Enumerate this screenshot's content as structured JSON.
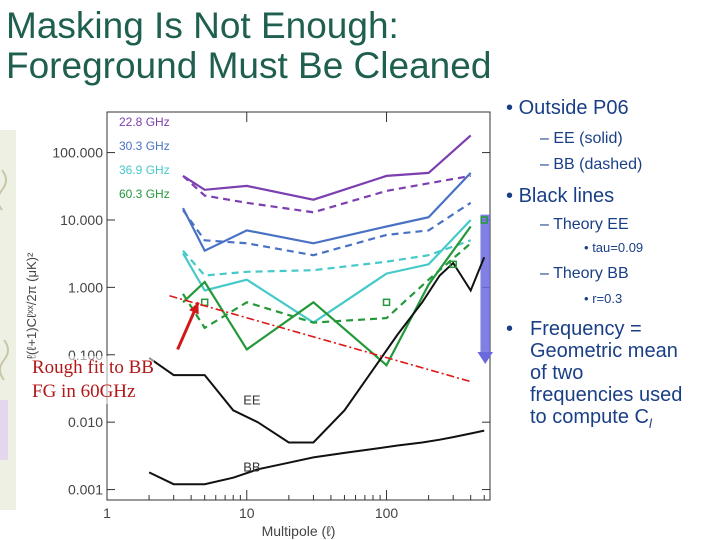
{
  "slide": {
    "title_line1": "Masking Is Not Enough:",
    "title_line2": "Foreground Must Be Cleaned",
    "title_color": "#1f5f4f",
    "text_color": "#1a3f86"
  },
  "bullets": {
    "b1": "Outside P06",
    "b1_sub1": "EE (solid)",
    "b1_sub2": "BB (dashed)",
    "b2": "Black lines",
    "b2_sub1": "Theory EE",
    "b2_sub1_sub": "tau=0.09",
    "b2_sub2": "Theory BB",
    "b2_sub2_sub": "r=0.3",
    "b3_line1": "Frequency =",
    "b3_line2": "Geometric mean",
    "b3_line3": "of two",
    "b3_line4": "frequencies used",
    "b3_line5": "to compute C",
    "b3_sub": "l",
    "bullet_char": "•",
    "dash_char": "–"
  },
  "annotation": {
    "line1": "Rough fit to BB",
    "line2": "FG in 60GHz",
    "color": "#b21818"
  },
  "chart_data": {
    "type": "line",
    "xscale": "log",
    "yscale": "log",
    "xlim": [
      1,
      550
    ],
    "ylim": [
      0.0007,
      400
    ],
    "xlabel": "Multipole (ℓ)",
    "ylabel": "ℓ(ℓ+1)Cℓˣˣ/2π (μK)²",
    "xticks": [
      {
        "label": "1",
        "value": 1
      },
      {
        "label": "10",
        "value": 10
      },
      {
        "label": "100",
        "value": 100
      }
    ],
    "yticks": [
      {
        "label": "100.000",
        "value": 100
      },
      {
        "label": "10.000",
        "value": 10
      },
      {
        "label": "1.000",
        "value": 1
      },
      {
        "label": "0.100",
        "value": 0.1
      },
      {
        "label": "0.010",
        "value": 0.01
      },
      {
        "label": "0.001",
        "value": 0.001
      }
    ],
    "legend": [
      {
        "name": "22.8 GHz",
        "color": "#7b3fb0"
      },
      {
        "name": "30.3 GHz",
        "color": "#4a72c4"
      },
      {
        "name": "36.9 GHz",
        "color": "#45c9c9"
      },
      {
        "name": "60.3 GHz",
        "color": "#23993a"
      }
    ],
    "series": [
      {
        "freq": "22.8 GHz",
        "kind": "EE",
        "dash": false,
        "color": "#7b3fb0",
        "x": [
          3.5,
          5,
          10,
          30,
          100,
          200,
          400
        ],
        "y": [
          45,
          28,
          32,
          20,
          45,
          50,
          180
        ]
      },
      {
        "freq": "22.8 GHz",
        "kind": "BB",
        "dash": true,
        "color": "#7b3fb0",
        "x": [
          3.5,
          5,
          10,
          30,
          100,
          200,
          400
        ],
        "y": [
          45,
          23,
          18,
          13,
          27,
          35,
          45
        ]
      },
      {
        "freq": "30.3 GHz",
        "kind": "EE",
        "dash": false,
        "color": "#4a72c4",
        "x": [
          3.5,
          5,
          10,
          30,
          100,
          200,
          400
        ],
        "y": [
          15,
          3.5,
          7,
          4.5,
          8,
          11,
          50
        ]
      },
      {
        "freq": "30.3 GHz",
        "kind": "BB",
        "dash": true,
        "color": "#4a72c4",
        "x": [
          3.5,
          5,
          10,
          30,
          100,
          200,
          400
        ],
        "y": [
          14,
          5,
          4.5,
          3,
          6,
          7,
          18
        ]
      },
      {
        "freq": "36.9 GHz",
        "kind": "EE",
        "dash": false,
        "color": "#45c9c9",
        "x": [
          3.5,
          5,
          10,
          30,
          100,
          200,
          400
        ],
        "y": [
          3.2,
          0.9,
          1.3,
          0.3,
          1.6,
          2.2,
          10
        ]
      },
      {
        "freq": "36.9 GHz",
        "kind": "BB",
        "dash": true,
        "color": "#45c9c9",
        "x": [
          3.5,
          5,
          10,
          30,
          100,
          200,
          400
        ],
        "y": [
          3.5,
          1.5,
          1.7,
          1.8,
          2.4,
          3,
          5
        ]
      },
      {
        "freq": "60.3 GHz",
        "kind": "EE",
        "dash": false,
        "color": "#23993a",
        "x": [
          3.5,
          5,
          10,
          30,
          100,
          200,
          400
        ],
        "y": [
          0.6,
          1.2,
          0.12,
          0.6,
          0.07,
          1.1,
          8
        ]
      },
      {
        "freq": "60.3 GHz",
        "kind": "BB",
        "dash": true,
        "color": "#23993a",
        "x": [
          3.5,
          5,
          10,
          30,
          100,
          200,
          400
        ],
        "y": [
          0.8,
          0.25,
          0.6,
          0.3,
          0.35,
          1.3,
          4.5
        ]
      }
    ],
    "theory": [
      {
        "label": "EE",
        "x": [
          2,
          3,
          5,
          8,
          12,
          20,
          30,
          50,
          80,
          120,
          180,
          240,
          300,
          400,
          500
        ],
        "y": [
          0.09,
          0.05,
          0.05,
          0.015,
          0.01,
          0.005,
          0.005,
          0.015,
          0.06,
          0.2,
          0.6,
          1.5,
          2.3,
          0.9,
          2.8
        ]
      },
      {
        "label": "BB",
        "x": [
          2,
          3,
          5,
          8,
          12,
          20,
          30,
          50,
          80,
          120,
          180,
          240,
          300,
          400,
          500
        ],
        "y": [
          0.0018,
          0.0012,
          0.0012,
          0.0015,
          0.002,
          0.0025,
          0.003,
          0.0035,
          0.004,
          0.0045,
          0.005,
          0.0055,
          0.006,
          0.0068,
          0.0075
        ]
      }
    ],
    "fit_line": {
      "color": "#dd1818",
      "x": [
        2.8,
        400
      ],
      "y": [
        0.75,
        0.04
      ]
    },
    "marker_points": [
      {
        "x": 5,
        "y": 0.6
      },
      {
        "x": 100,
        "y": 0.6
      },
      {
        "x": 300,
        "y": 2.2
      },
      {
        "x": 500,
        "y": 10
      }
    ],
    "band": {
      "xmin": 470,
      "xmax": 600,
      "ymin": 0.11,
      "ymax": 12,
      "color": "#6a6ade"
    },
    "annotation_arrow": {
      "from_x": 3.2,
      "from_y": 0.12,
      "to_x": 4.5,
      "to_y": 0.6,
      "color": "#d01818"
    }
  }
}
